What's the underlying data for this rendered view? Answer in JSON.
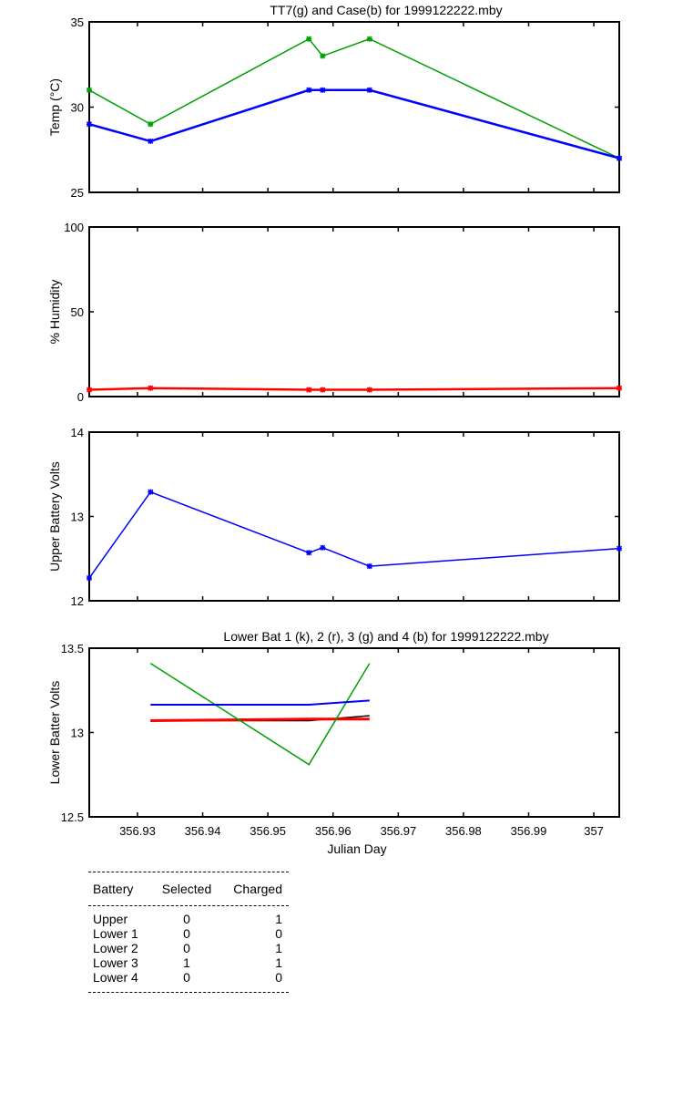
{
  "chart_data": [
    {
      "type": "line",
      "title": "TT7(g) and Case(b) for 1999122222.mby",
      "xlabel": "",
      "ylabel": "Temp  (°C)",
      "ylim": [
        25,
        35
      ],
      "yticks": [
        "25",
        "30",
        "35"
      ],
      "xlim": [
        356.9226,
        357.0039
      ],
      "x": [
        356.9226,
        356.932,
        356.9563,
        356.9584,
        356.9656,
        357.0039
      ],
      "series": [
        {
          "color": "#00a000",
          "values": [
            31,
            29,
            34,
            33,
            34,
            27
          ],
          "marker": "*"
        },
        {
          "color": "#0000ff",
          "values": [
            29,
            28,
            31,
            31,
            31,
            27
          ],
          "marker": "*"
        }
      ]
    },
    {
      "type": "line",
      "title": "",
      "xlabel": "",
      "ylabel": "% Humidity",
      "ylim": [
        0,
        100
      ],
      "yticks": [
        "0",
        "50",
        "100"
      ],
      "xlim": [
        356.9226,
        357.0039
      ],
      "x": [
        356.9226,
        356.932,
        356.9563,
        356.9584,
        356.9656,
        357.0039
      ],
      "series": [
        {
          "color": "#ff0000",
          "values": [
            4,
            5,
            4,
            4,
            4,
            5
          ],
          "marker": "*"
        }
      ]
    },
    {
      "type": "line",
      "title": "",
      "xlabel": "",
      "ylabel": "Upper Battery Volts",
      "ylim": [
        12,
        14
      ],
      "yticks": [
        "12",
        "13",
        "14"
      ],
      "xlim": [
        356.9226,
        357.0039
      ],
      "x": [
        356.9226,
        356.932,
        356.9563,
        356.9584,
        356.9656,
        357.0039
      ],
      "series": [
        {
          "color": "#0000ff",
          "values": [
            12.27,
            13.29,
            12.57,
            12.63,
            12.41,
            12.62
          ],
          "marker": "*"
        }
      ]
    },
    {
      "type": "line",
      "title": "Lower Bat 1 (k), 2 (r), 3 (g) and 4 (b) for 1999122222.mby",
      "xlabel": "Julian Day",
      "ylabel": "Lower Batter Volts",
      "ylim": [
        12.5,
        13.5
      ],
      "yticks": [
        "12.5",
        "13",
        "13.5"
      ],
      "xlim": [
        356.9226,
        357.0039
      ],
      "xticks": [
        "356.93",
        "356.94",
        "356.95",
        "356.96",
        "356.97",
        "356.98",
        "356.99",
        "357"
      ],
      "x": [
        356.932,
        356.9563,
        356.9656
      ],
      "series": [
        {
          "color": "#000000",
          "values": [
            13.07,
            13.07,
            13.1
          ]
        },
        {
          "color": "#ff0000",
          "values": [
            13.07,
            13.08,
            13.08
          ]
        },
        {
          "color": "#00a000",
          "values": [
            13.41,
            12.81,
            13.41
          ]
        },
        {
          "color": "#0000ff",
          "values": [
            13.165,
            13.165,
            13.19
          ]
        }
      ]
    }
  ],
  "table": {
    "headers": [
      "Battery",
      "Selected",
      "Charged"
    ],
    "rows": [
      [
        "Upper",
        "0",
        "1"
      ],
      [
        "Lower 1",
        "0",
        "0"
      ],
      [
        "Lower 2",
        "0",
        "1"
      ],
      [
        "Lower 3",
        "1",
        "1"
      ],
      [
        "Lower 4",
        "0",
        "0"
      ]
    ]
  }
}
